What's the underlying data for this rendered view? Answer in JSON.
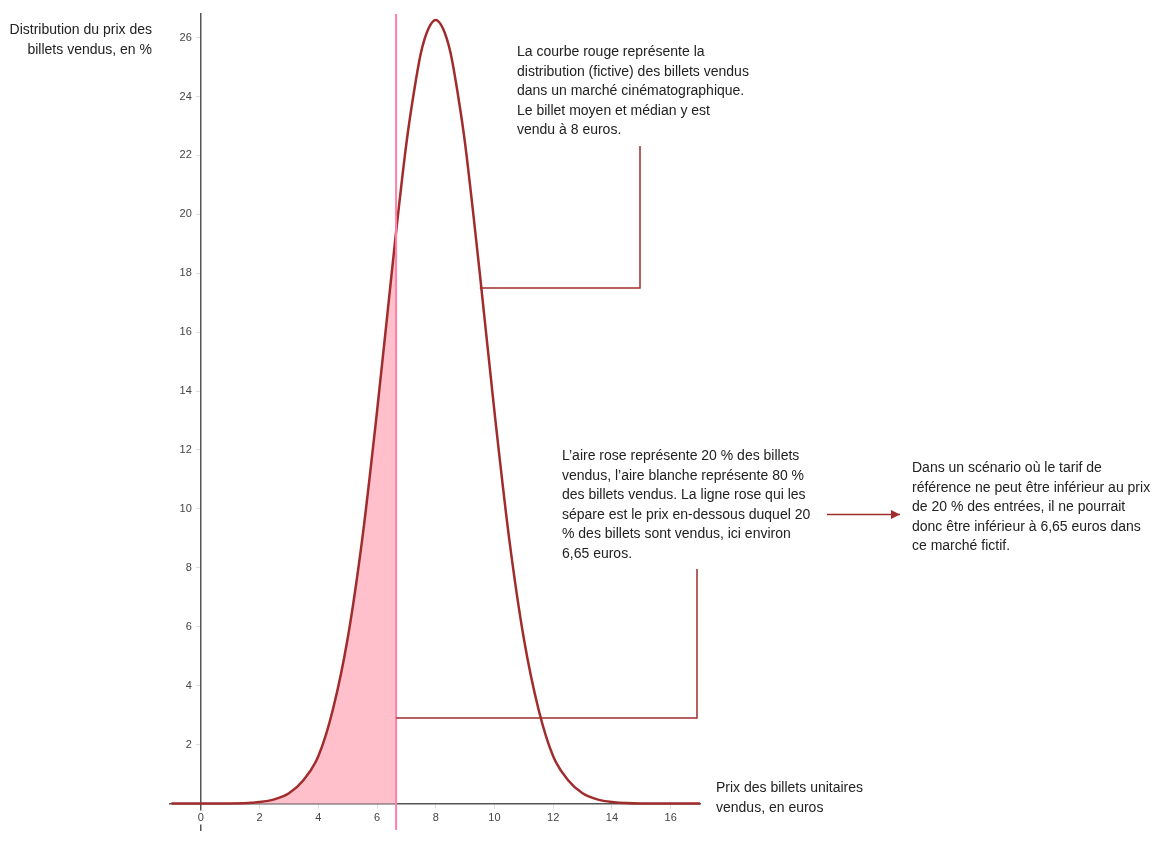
{
  "chart_data": {
    "type": "line",
    "xlabel": "Prix des billets unitaires vendus, en euros",
    "ylabel": "Distribution du prix des billets vendus, en %",
    "xlim": [
      -1.05,
      17
    ],
    "ylim": [
      -0.9,
      26.8
    ],
    "xticks": [
      0,
      2,
      4,
      6,
      8,
      10,
      12,
      14,
      16
    ],
    "yticks": [
      2,
      4,
      6,
      8,
      10,
      12,
      14,
      16,
      18,
      20,
      22,
      24,
      26
    ],
    "marker": "none",
    "grid": false,
    "series": [
      {
        "type": "area",
        "color": "#ffc0cb",
        "x": [
          -1,
          0,
          1,
          2,
          2.5,
          3,
          3.5,
          4,
          4.5,
          5,
          5.5,
          6,
          6.5,
          6.65
        ],
        "values": [
          0,
          0,
          0,
          0.05,
          0.14,
          0.35,
          0.8,
          1.6,
          3.2,
          5.6,
          9,
          13.3,
          18,
          19.4
        ]
      },
      {
        "type": "line",
        "color": "#a02c2c",
        "x": [
          -1,
          0,
          1,
          2,
          2.5,
          3,
          3.5,
          4,
          4.5,
          5,
          5.5,
          6,
          6.5,
          6.65,
          7,
          7.25,
          7.5,
          7.75,
          8,
          8.25,
          8.5,
          8.75,
          9,
          9.5,
          10,
          10.5,
          11,
          11.5,
          12,
          12.5,
          13,
          13.5,
          14,
          15,
          16,
          17
        ],
        "values": [
          0,
          0,
          0,
          0.05,
          0.14,
          0.35,
          0.8,
          1.6,
          3.2,
          5.6,
          9,
          13.3,
          18,
          19.4,
          22.4,
          24.1,
          25.5,
          26.3,
          26.6,
          26.3,
          25.5,
          24.1,
          22.4,
          18,
          13.3,
          9,
          5.6,
          3.2,
          1.6,
          0.8,
          0.35,
          0.14,
          0.05,
          0,
          0,
          0
        ]
      }
    ],
    "ref_lines": [
      {
        "axis": "x",
        "value": 6.65,
        "color": "#ff80a8"
      }
    ],
    "annotations": [
      {
        "text": "La courbe rouge représente la distribution (fictive) des billets vendus dans un marché cinématographique. Le billet moyen et médian y est vendu à 8 euros.",
        "x": 9.5,
        "y": 17.5
      },
      {
        "text": "L’aire rose représente 20 % des billets vendus, l’aire blanche représente 80 % des billets vendus. La ligne rose qui les sépare est le prix en-dessous duquel 20 % des billets sont vendus, ici environ 6,65 euros.",
        "x": 6.65,
        "y": 2.9
      },
      "Dans un scénario où le tarif de référence ne peut être inférieur au prix de 20 % des entrées, il ne pourrait donc être inférieur à 6,65 euros dans ce marché fictif."
    ]
  }
}
